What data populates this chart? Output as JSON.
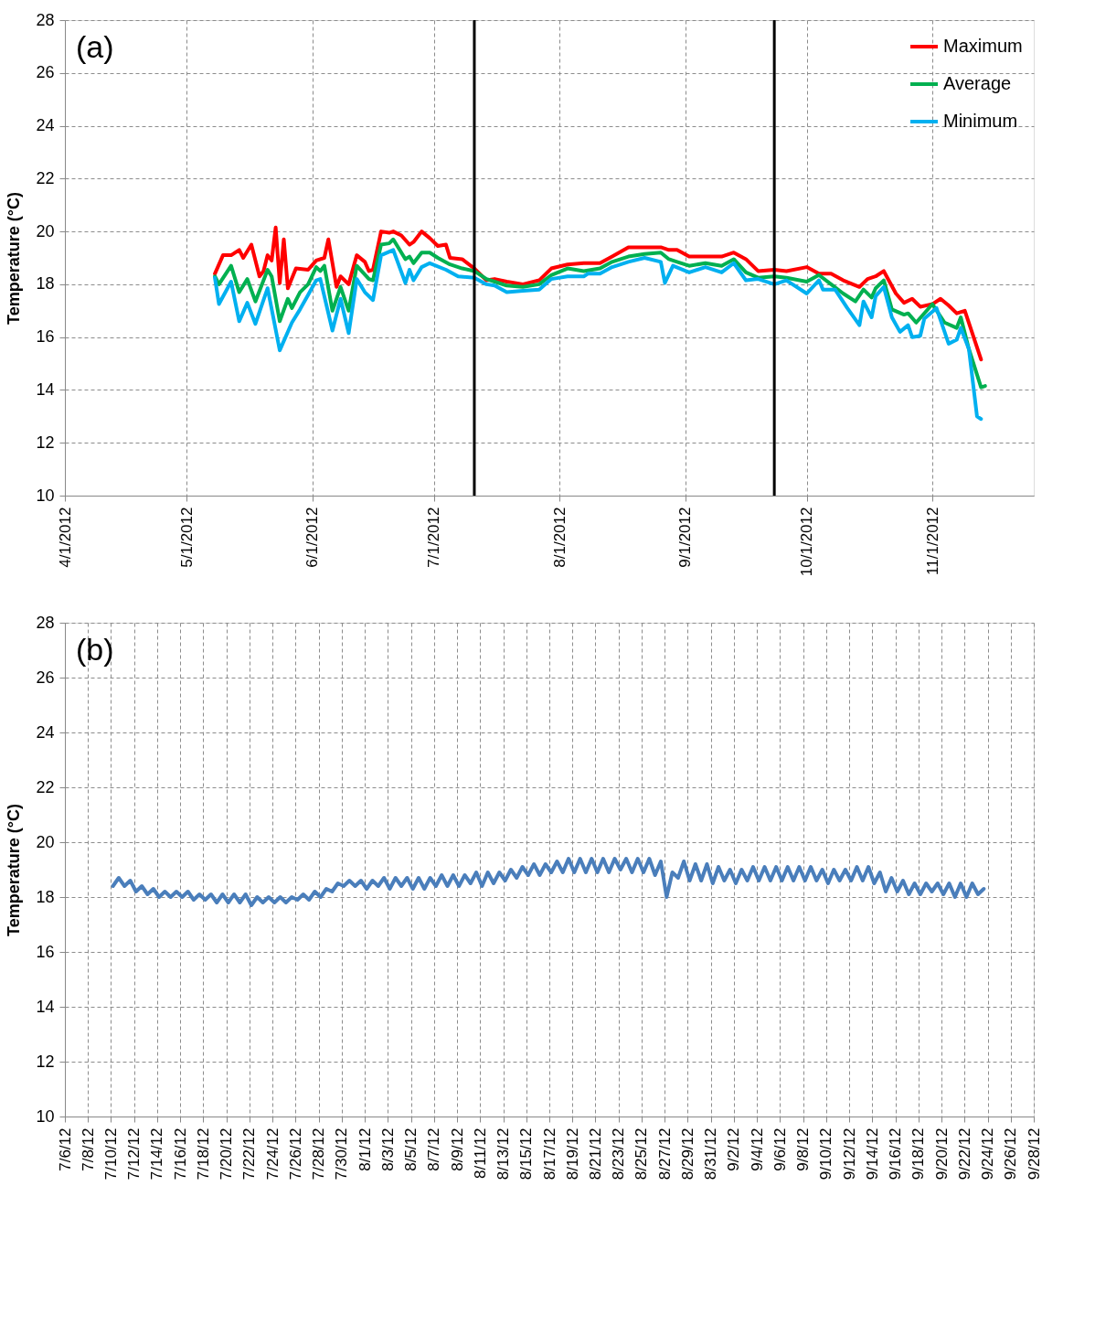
{
  "chart_data": [
    {
      "type": "line",
      "ylabel": "Temperature (°C)",
      "annotations": [
        "(a)"
      ],
      "legend": "top right",
      "grid": true,
      "xlim": [
        "2012-04-01",
        "2012-11-26"
      ],
      "ylim": [
        10,
        28
      ],
      "yticks": [
        10,
        12,
        14,
        16,
        18,
        20,
        22,
        24,
        26,
        28
      ],
      "xticks": [
        {
          "value": "2012-04-01",
          "label": "4/1/2012"
        },
        {
          "value": "2012-05-01",
          "label": "5/1/2012"
        },
        {
          "value": "2012-06-01",
          "label": "6/1/2012"
        },
        {
          "value": "2012-07-01",
          "label": "7/1/2012"
        },
        {
          "value": "2012-08-01",
          "label": "8/1/2012"
        },
        {
          "value": "2012-09-01",
          "label": "9/1/2012"
        },
        {
          "value": "2012-10-01",
          "label": "10/1/2012"
        },
        {
          "value": "2012-11-01",
          "label": "11/1/2012"
        }
      ],
      "ref_lines": [
        {
          "axis": "x",
          "value": "2012-07-11",
          "color": "#000000"
        },
        {
          "axis": "x",
          "value": "2012-09-23",
          "color": "#000000"
        }
      ],
      "series": [
        {
          "name": "Maximum",
          "color": "#ff0000",
          "x": [
            "2012-05-08",
            "2012-05-10",
            "2012-05-12",
            "2012-05-14",
            "2012-05-15",
            "2012-05-17",
            "2012-05-19",
            "2012-05-20",
            "2012-05-21",
            "2012-05-22",
            "2012-05-23",
            "2012-05-24",
            "2012-05-25",
            "2012-05-26",
            "2012-05-28",
            "2012-05-31",
            "2012-06-02",
            "2012-06-04",
            "2012-06-05",
            "2012-06-07",
            "2012-06-08",
            "2012-06-10",
            "2012-06-12",
            "2012-06-14",
            "2012-06-15",
            "2012-06-16",
            "2012-06-18",
            "2012-06-20",
            "2012-06-21",
            "2012-06-23",
            "2012-06-25",
            "2012-06-26",
            "2012-06-28",
            "2012-06-30",
            "2012-07-02",
            "2012-07-04",
            "2012-07-05",
            "2012-07-08",
            "2012-07-11",
            "2012-07-14",
            "2012-07-16",
            "2012-07-19",
            "2012-07-23",
            "2012-07-27",
            "2012-07-30",
            "2012-08-03",
            "2012-08-07",
            "2012-08-11",
            "2012-08-14",
            "2012-08-18",
            "2012-08-22",
            "2012-08-26",
            "2012-08-28",
            "2012-08-30",
            "2012-09-02",
            "2012-09-06",
            "2012-09-10",
            "2012-09-13",
            "2012-09-16",
            "2012-09-19",
            "2012-09-23",
            "2012-09-26",
            "2012-10-01",
            "2012-10-04",
            "2012-10-07",
            "2012-10-10",
            "2012-10-14",
            "2012-10-16",
            "2012-10-18",
            "2012-10-20",
            "2012-10-23",
            "2012-10-25",
            "2012-10-27",
            "2012-10-29",
            "2012-11-01",
            "2012-11-03",
            "2012-11-05",
            "2012-11-07",
            "2012-11-09",
            "2012-11-13"
          ],
          "values": [
            18.4,
            19.1,
            19.1,
            19.3,
            19.0,
            19.5,
            18.3,
            18.5,
            19.1,
            18.9,
            20.15,
            18.05,
            19.7,
            17.85,
            18.6,
            18.55,
            18.9,
            19.0,
            19.7,
            17.9,
            18.3,
            18.0,
            19.1,
            18.85,
            18.5,
            18.55,
            20.0,
            19.95,
            20.0,
            19.85,
            19.5,
            19.6,
            20.0,
            19.75,
            19.45,
            19.5,
            19.0,
            18.95,
            18.6,
            18.15,
            18.2,
            18.1,
            18.0,
            18.15,
            18.6,
            18.75,
            18.8,
            18.8,
            19.05,
            19.4,
            19.4,
            19.4,
            19.3,
            19.3,
            19.05,
            19.05,
            19.05,
            19.2,
            18.95,
            18.5,
            18.55,
            18.5,
            18.65,
            18.4,
            18.4,
            18.15,
            17.9,
            18.2,
            18.3,
            18.5,
            17.65,
            17.3,
            17.45,
            17.15,
            17.25,
            17.45,
            17.2,
            16.9,
            17.0,
            15.15
          ]
        },
        {
          "name": "Average",
          "color": "#00b050",
          "x": [
            "2012-05-08",
            "2012-05-09",
            "2012-05-12",
            "2012-05-14",
            "2012-05-16",
            "2012-05-18",
            "2012-05-21",
            "2012-05-22",
            "2012-05-24",
            "2012-05-26",
            "2012-05-27",
            "2012-05-29",
            "2012-05-31",
            "2012-06-02",
            "2012-06-03",
            "2012-06-04",
            "2012-06-06",
            "2012-06-08",
            "2012-06-10",
            "2012-06-12",
            "2012-06-15",
            "2012-06-16",
            "2012-06-18",
            "2012-06-20",
            "2012-06-21",
            "2012-06-24",
            "2012-06-25",
            "2012-06-26",
            "2012-06-28",
            "2012-06-30",
            "2012-07-02",
            "2012-07-05",
            "2012-07-08",
            "2012-07-11",
            "2012-07-14",
            "2012-07-16",
            "2012-07-19",
            "2012-07-23",
            "2012-07-27",
            "2012-07-30",
            "2012-08-03",
            "2012-08-07",
            "2012-08-11",
            "2012-08-14",
            "2012-08-18",
            "2012-08-22",
            "2012-08-26",
            "2012-08-28",
            "2012-08-30",
            "2012-09-02",
            "2012-09-06",
            "2012-09-10",
            "2012-09-13",
            "2012-09-16",
            "2012-09-19",
            "2012-09-23",
            "2012-09-26",
            "2012-10-01",
            "2012-10-04",
            "2012-10-07",
            "2012-10-10",
            "2012-10-13",
            "2012-10-15",
            "2012-10-17",
            "2012-10-18",
            "2012-10-20",
            "2012-10-22",
            "2012-10-25",
            "2012-10-26",
            "2012-10-28",
            "2012-11-01",
            "2012-11-04",
            "2012-11-07",
            "2012-11-08",
            "2012-11-10",
            "2012-11-13",
            "2012-11-14"
          ],
          "values": [
            18.3,
            18.0,
            18.7,
            17.7,
            18.2,
            17.35,
            18.55,
            18.3,
            16.6,
            17.45,
            17.1,
            17.7,
            18.0,
            18.65,
            18.5,
            18.7,
            17.0,
            17.9,
            17.0,
            18.7,
            18.2,
            18.15,
            19.5,
            19.55,
            19.7,
            18.95,
            19.05,
            18.8,
            19.2,
            19.2,
            19.0,
            18.75,
            18.6,
            18.5,
            18.2,
            18.1,
            17.95,
            17.9,
            18.0,
            18.35,
            18.6,
            18.5,
            18.6,
            18.85,
            19.05,
            19.15,
            19.2,
            18.95,
            18.85,
            18.7,
            18.8,
            18.7,
            18.95,
            18.45,
            18.25,
            18.3,
            18.25,
            18.1,
            18.35,
            18.0,
            17.65,
            17.35,
            17.8,
            17.5,
            17.85,
            18.15,
            17.05,
            16.85,
            16.9,
            16.55,
            17.25,
            16.55,
            16.35,
            16.75,
            15.55,
            14.1,
            14.15
          ]
        },
        {
          "name": "Minimum",
          "color": "#00b0f0",
          "x": [
            "2012-05-08",
            "2012-05-09",
            "2012-05-12",
            "2012-05-14",
            "2012-05-16",
            "2012-05-18",
            "2012-05-21",
            "2012-05-24",
            "2012-05-27",
            "2012-05-29",
            "2012-05-31",
            "2012-06-02",
            "2012-06-03",
            "2012-06-06",
            "2012-06-08",
            "2012-06-10",
            "2012-06-12",
            "2012-06-14",
            "2012-06-16",
            "2012-06-18",
            "2012-06-21",
            "2012-06-24",
            "2012-06-25",
            "2012-06-26",
            "2012-06-28",
            "2012-06-30",
            "2012-07-04",
            "2012-07-07",
            "2012-07-11",
            "2012-07-14",
            "2012-07-16",
            "2012-07-19",
            "2012-07-23",
            "2012-07-27",
            "2012-07-30",
            "2012-08-03",
            "2012-08-07",
            "2012-08-08",
            "2012-08-11",
            "2012-08-14",
            "2012-08-18",
            "2012-08-22",
            "2012-08-26",
            "2012-08-27",
            "2012-08-29",
            "2012-09-02",
            "2012-09-06",
            "2012-09-10",
            "2012-09-13",
            "2012-09-16",
            "2012-09-19",
            "2012-09-23",
            "2012-09-26",
            "2012-10-01",
            "2012-10-04",
            "2012-10-05",
            "2012-10-08",
            "2012-10-11",
            "2012-10-14",
            "2012-10-15",
            "2012-10-17",
            "2012-10-18",
            "2012-10-20",
            "2012-10-22",
            "2012-10-24",
            "2012-10-26",
            "2012-10-27",
            "2012-10-29",
            "2012-10-30",
            "2012-11-02",
            "2012-11-05",
            "2012-11-07",
            "2012-11-08",
            "2012-11-10",
            "2012-11-12",
            "2012-11-13"
          ],
          "values": [
            18.25,
            17.25,
            18.1,
            16.6,
            17.3,
            16.5,
            17.85,
            15.5,
            16.55,
            17.05,
            17.6,
            18.15,
            18.2,
            16.25,
            17.45,
            16.15,
            18.2,
            17.7,
            17.4,
            19.1,
            19.3,
            18.05,
            18.55,
            18.15,
            18.65,
            18.8,
            18.55,
            18.3,
            18.25,
            18.0,
            17.95,
            17.7,
            17.75,
            17.8,
            18.2,
            18.3,
            18.3,
            18.4,
            18.4,
            18.65,
            18.85,
            19.0,
            18.85,
            18.05,
            18.7,
            18.45,
            18.65,
            18.45,
            18.8,
            18.15,
            18.2,
            18.0,
            18.15,
            17.65,
            18.15,
            17.8,
            17.8,
            17.1,
            16.45,
            17.35,
            16.75,
            17.55,
            17.9,
            16.75,
            16.2,
            16.45,
            16.0,
            16.05,
            16.7,
            17.1,
            15.75,
            15.9,
            16.35,
            15.55,
            13.0,
            12.9
          ]
        }
      ]
    },
    {
      "type": "line",
      "ylabel": "Temperature (°C)",
      "annotations": [
        "(b)"
      ],
      "grid": true,
      "xlim": [
        "2012-07-06",
        "2012-09-28"
      ],
      "ylim": [
        10,
        28
      ],
      "yticks": [
        10,
        12,
        14,
        16,
        18,
        20,
        22,
        24,
        26,
        28
      ],
      "xticks": [
        {
          "value": "2012-07-06",
          "label": "7/6/12"
        },
        {
          "value": "2012-07-08",
          "label": "7/8/12"
        },
        {
          "value": "2012-07-10",
          "label": "7/10/12"
        },
        {
          "value": "2012-07-12",
          "label": "7/12/12"
        },
        {
          "value": "2012-07-14",
          "label": "7/14/12"
        },
        {
          "value": "2012-07-16",
          "label": "7/16/12"
        },
        {
          "value": "2012-07-18",
          "label": "7/18/12"
        },
        {
          "value": "2012-07-20",
          "label": "7/20/12"
        },
        {
          "value": "2012-07-22",
          "label": "7/22/12"
        },
        {
          "value": "2012-07-24",
          "label": "7/24/12"
        },
        {
          "value": "2012-07-26",
          "label": "7/26/12"
        },
        {
          "value": "2012-07-28",
          "label": "7/28/12"
        },
        {
          "value": "2012-07-30",
          "label": "7/30/12"
        },
        {
          "value": "2012-08-01",
          "label": "8/1/12"
        },
        {
          "value": "2012-08-03",
          "label": "8/3/12"
        },
        {
          "value": "2012-08-05",
          "label": "8/5/12"
        },
        {
          "value": "2012-08-07",
          "label": "8/7/12"
        },
        {
          "value": "2012-08-09",
          "label": "8/9/12"
        },
        {
          "value": "2012-08-11",
          "label": "8/11/12"
        },
        {
          "value": "2012-08-13",
          "label": "8/13/12"
        },
        {
          "value": "2012-08-15",
          "label": "8/15/12"
        },
        {
          "value": "2012-08-17",
          "label": "8/17/12"
        },
        {
          "value": "2012-08-19",
          "label": "8/19/12"
        },
        {
          "value": "2012-08-21",
          "label": "8/21/12"
        },
        {
          "value": "2012-08-23",
          "label": "8/23/12"
        },
        {
          "value": "2012-08-25",
          "label": "8/25/12"
        },
        {
          "value": "2012-08-27",
          "label": "8/27/12"
        },
        {
          "value": "2012-08-29",
          "label": "8/29/12"
        },
        {
          "value": "2012-08-31",
          "label": "8/31/12"
        },
        {
          "value": "2012-09-02",
          "label": "9/2/12"
        },
        {
          "value": "2012-09-04",
          "label": "9/4/12"
        },
        {
          "value": "2012-09-06",
          "label": "9/6/12"
        },
        {
          "value": "2012-09-08",
          "label": "9/8/12"
        },
        {
          "value": "2012-09-10",
          "label": "9/10/12"
        },
        {
          "value": "2012-09-12",
          "label": "9/12/12"
        },
        {
          "value": "2012-09-14",
          "label": "9/14/12"
        },
        {
          "value": "2012-09-16",
          "label": "9/16/12"
        },
        {
          "value": "2012-09-18",
          "label": "9/18/12"
        },
        {
          "value": "2012-09-20",
          "label": "9/20/12"
        },
        {
          "value": "2012-09-22",
          "label": "9/22/12"
        },
        {
          "value": "2012-09-24",
          "label": "9/24/12"
        },
        {
          "value": "2012-09-26",
          "label": "9/26/12"
        },
        {
          "value": "2012-09-28",
          "label": "9/28/12"
        }
      ],
      "series": [
        {
          "color": "#4a7ebb",
          "x": [
            "2012-07-10T04:00",
            "2012-07-10T16:00",
            "2012-07-11T04:00",
            "2012-07-11T16:00",
            "2012-07-12T04:00",
            "2012-07-12T16:00",
            "2012-07-13T04:00",
            "2012-07-13T16:00",
            "2012-07-14T04:00",
            "2012-07-14T16:00",
            "2012-07-15T04:00",
            "2012-07-15T16:00",
            "2012-07-16T04:00",
            "2012-07-16T16:00",
            "2012-07-17T04:00",
            "2012-07-17T16:00",
            "2012-07-18T04:00",
            "2012-07-18T16:00",
            "2012-07-19T04:00",
            "2012-07-19T16:00",
            "2012-07-20T04:00",
            "2012-07-20T16:00",
            "2012-07-21T04:00",
            "2012-07-21T16:00",
            "2012-07-22T04:00",
            "2012-07-22T16:00",
            "2012-07-23T04:00",
            "2012-07-23T16:00",
            "2012-07-24T04:00",
            "2012-07-24T16:00",
            "2012-07-25T04:00",
            "2012-07-25T16:00",
            "2012-07-26T04:00",
            "2012-07-26T16:00",
            "2012-07-27T04:00",
            "2012-07-27T16:00",
            "2012-07-28T04:00",
            "2012-07-28T16:00",
            "2012-07-29T04:00",
            "2012-07-29T16:00",
            "2012-07-30T04:00",
            "2012-07-30T16:00",
            "2012-07-31T04:00",
            "2012-07-31T16:00",
            "2012-08-01T04:00",
            "2012-08-01T16:00",
            "2012-08-02T04:00",
            "2012-08-02T16:00",
            "2012-08-03T04:00",
            "2012-08-03T16:00",
            "2012-08-04T04:00",
            "2012-08-04T16:00",
            "2012-08-05T04:00",
            "2012-08-05T16:00",
            "2012-08-06T04:00",
            "2012-08-06T16:00",
            "2012-08-07T04:00",
            "2012-08-07T16:00",
            "2012-08-08T04:00",
            "2012-08-08T16:00",
            "2012-08-09T04:00",
            "2012-08-09T16:00",
            "2012-08-10T04:00",
            "2012-08-10T16:00",
            "2012-08-11T04:00",
            "2012-08-11T16:00",
            "2012-08-12T04:00",
            "2012-08-12T16:00",
            "2012-08-13T04:00",
            "2012-08-13T16:00",
            "2012-08-14T04:00",
            "2012-08-14T16:00",
            "2012-08-15T04:00",
            "2012-08-15T16:00",
            "2012-08-16T04:00",
            "2012-08-16T16:00",
            "2012-08-17T04:00",
            "2012-08-17T16:00",
            "2012-08-18T04:00",
            "2012-08-18T16:00",
            "2012-08-19T04:00",
            "2012-08-19T16:00",
            "2012-08-20T04:00",
            "2012-08-20T16:00",
            "2012-08-21T04:00",
            "2012-08-21T16:00",
            "2012-08-22T04:00",
            "2012-08-22T16:00",
            "2012-08-23T04:00",
            "2012-08-23T16:00",
            "2012-08-24T04:00",
            "2012-08-24T16:00",
            "2012-08-25T04:00",
            "2012-08-25T16:00",
            "2012-08-26T04:00",
            "2012-08-26T16:00",
            "2012-08-27T04:00",
            "2012-08-27T16:00",
            "2012-08-28T04:00",
            "2012-08-28T16:00",
            "2012-08-29T04:00",
            "2012-08-29T16:00",
            "2012-08-30T04:00",
            "2012-08-30T16:00",
            "2012-08-31T04:00",
            "2012-08-31T16:00",
            "2012-09-01T04:00",
            "2012-09-01T16:00",
            "2012-09-02T04:00",
            "2012-09-02T16:00",
            "2012-09-03T04:00",
            "2012-09-03T16:00",
            "2012-09-04T04:00",
            "2012-09-04T16:00",
            "2012-09-05T04:00",
            "2012-09-05T16:00",
            "2012-09-06T04:00",
            "2012-09-06T16:00",
            "2012-09-07T04:00",
            "2012-09-07T16:00",
            "2012-09-08T04:00",
            "2012-09-08T16:00",
            "2012-09-09T04:00",
            "2012-09-09T16:00",
            "2012-09-10T04:00",
            "2012-09-10T16:00",
            "2012-09-11T04:00",
            "2012-09-11T16:00",
            "2012-09-12T04:00",
            "2012-09-12T16:00",
            "2012-09-13T04:00",
            "2012-09-13T16:00",
            "2012-09-14T04:00",
            "2012-09-14T16:00",
            "2012-09-15T04:00",
            "2012-09-15T16:00",
            "2012-09-16T04:00",
            "2012-09-16T16:00",
            "2012-09-17T04:00",
            "2012-09-17T16:00",
            "2012-09-18T04:00",
            "2012-09-18T16:00",
            "2012-09-19T04:00",
            "2012-09-19T16:00",
            "2012-09-20T04:00",
            "2012-09-20T16:00",
            "2012-09-21T04:00",
            "2012-09-21T16:00",
            "2012-09-22T04:00",
            "2012-09-22T16:00",
            "2012-09-23T04:00",
            "2012-09-23T16:00"
          ],
          "values": [
            18.4,
            18.7,
            18.4,
            18.6,
            18.2,
            18.4,
            18.1,
            18.3,
            18.0,
            18.2,
            18.0,
            18.2,
            18.0,
            18.2,
            17.9,
            18.1,
            17.9,
            18.1,
            17.8,
            18.1,
            17.8,
            18.1,
            17.8,
            18.1,
            17.7,
            18.0,
            17.8,
            18.0,
            17.8,
            18.0,
            17.8,
            18.0,
            17.9,
            18.1,
            17.9,
            18.2,
            18.0,
            18.3,
            18.2,
            18.5,
            18.4,
            18.6,
            18.4,
            18.6,
            18.3,
            18.6,
            18.4,
            18.7,
            18.3,
            18.7,
            18.4,
            18.7,
            18.3,
            18.7,
            18.3,
            18.7,
            18.4,
            18.8,
            18.4,
            18.8,
            18.4,
            18.8,
            18.5,
            18.9,
            18.4,
            18.9,
            18.5,
            18.9,
            18.6,
            19.0,
            18.7,
            19.1,
            18.8,
            19.2,
            18.8,
            19.2,
            18.9,
            19.3,
            18.9,
            19.4,
            18.9,
            19.4,
            18.9,
            19.4,
            18.9,
            19.4,
            18.9,
            19.4,
            19.0,
            19.4,
            18.9,
            19.4,
            18.9,
            19.4,
            18.8,
            19.3,
            18.0,
            18.9,
            18.7,
            19.3,
            18.6,
            19.2,
            18.6,
            19.2,
            18.5,
            19.1,
            18.6,
            19.0,
            18.5,
            19.0,
            18.6,
            19.1,
            18.6,
            19.1,
            18.6,
            19.1,
            18.6,
            19.1,
            18.6,
            19.1,
            18.6,
            19.1,
            18.6,
            19.0,
            18.5,
            19.0,
            18.6,
            19.0,
            18.6,
            19.1,
            18.6,
            19.1,
            18.5,
            18.9,
            18.2,
            18.7,
            18.2,
            18.6,
            18.1,
            18.5,
            18.1,
            18.5,
            18.2,
            18.5,
            18.1,
            18.5,
            18.0,
            18.5,
            18.0,
            18.5,
            18.1,
            18.3
          ]
        }
      ]
    }
  ]
}
